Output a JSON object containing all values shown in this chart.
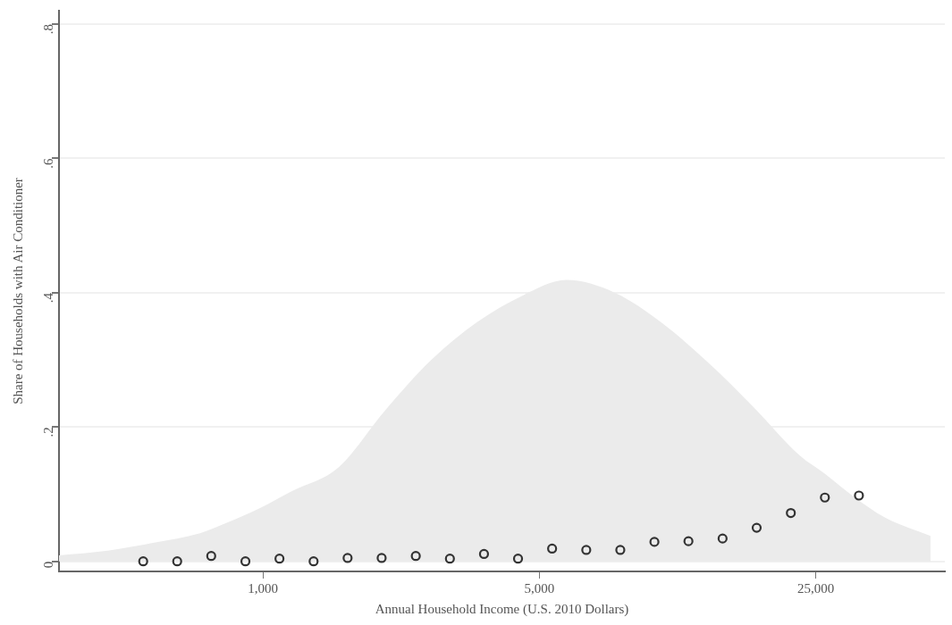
{
  "chart_data": {
    "type": "scatter",
    "xlabel": "Annual Household Income (U.S. 2010 Dollars)",
    "ylabel": "Share of Households with Air Conditioner",
    "log": "x",
    "grid": "y",
    "legend": false,
    "xlim": [
      305,
      53000
    ],
    "xticks": [
      {
        "value": 1000,
        "label": "1,000"
      },
      {
        "value": 5000,
        "label": "5,000"
      },
      {
        "value": 25000,
        "label": "25,000"
      }
    ],
    "ylim": [
      -0.015,
      0.82
    ],
    "yticks": [
      0,
      {
        "value": 0.2,
        "label": ".2"
      },
      {
        "value": 0.4,
        "label": ".4"
      },
      {
        "value": 0.6,
        "label": ".6"
      },
      {
        "value": 0.8,
        "label": ".8"
      }
    ],
    "series": [
      {
        "type": "area",
        "color": "#ebebeb",
        "x": [
          305,
          405,
          531,
          693,
          815,
          973,
          1188,
          1553,
          2032,
          2655,
          3473,
          4540,
          5845,
          7766,
          10160,
          13300,
          17380,
          22750,
          26300,
          31400,
          37450,
          48750
        ],
        "values": [
          0.009,
          0.016,
          0.028,
          0.042,
          0.058,
          0.078,
          0.105,
          0.14,
          0.224,
          0.299,
          0.356,
          0.396,
          0.419,
          0.4,
          0.356,
          0.297,
          0.23,
          0.158,
          0.131,
          0.095,
          0.065,
          0.038
        ]
      },
      {
        "marker": "circle",
        "color": "#333333",
        "x": [
          498,
          607,
          740,
          903,
          1101,
          1343,
          1637,
          1996,
          2435,
          2970,
          3622,
          4416,
          5385,
          6570,
          8010,
          9770,
          11910,
          14530,
          17720,
          21620,
          26360,
          32140
        ],
        "values": [
          0,
          0,
          0.008,
          0,
          0.004,
          0,
          0.005,
          0.005,
          0.008,
          0.004,
          0.011,
          0.004,
          0.019,
          0.017,
          0.017,
          0.029,
          0.03,
          0.034,
          0.05,
          0.072,
          0.095,
          0.098
        ]
      }
    ]
  }
}
